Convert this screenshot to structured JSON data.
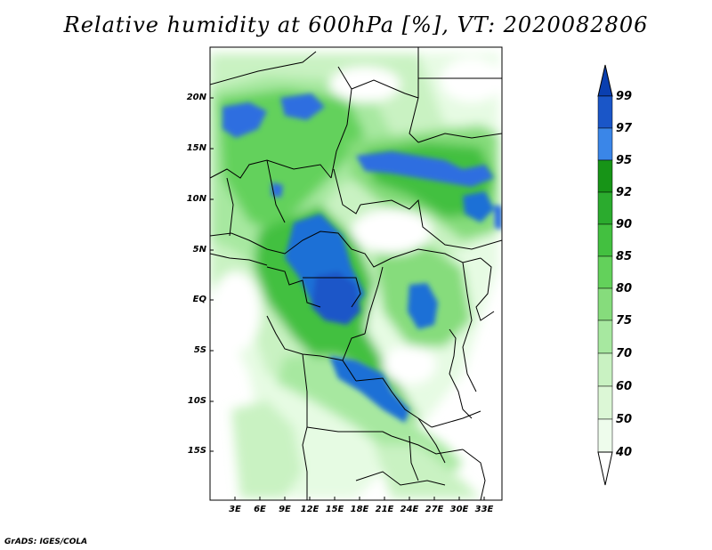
{
  "title": "Relative humidity at 600hPa [%], VT: 2020082806",
  "credit": "GrADS: IGES/COLA",
  "lat_ticks": [
    "20N",
    "15N",
    "10N",
    "5N",
    "EQ",
    "5S",
    "10S",
    "15S"
  ],
  "lon_ticks": [
    "3E",
    "6E",
    "9E",
    "12E",
    "15E",
    "18E",
    "21E",
    "24E",
    "27E",
    "30E",
    "33E"
  ],
  "colorbar": {
    "levels": [
      "40",
      "50",
      "60",
      "70",
      "75",
      "80",
      "85",
      "90",
      "92",
      "95",
      "97",
      "99"
    ],
    "colors": [
      "#ffffff",
      "#e6fbe3",
      "#c9f2c2",
      "#a7e8a0",
      "#86dc7c",
      "#63d15b",
      "#43c040",
      "#2bab2e",
      "#179417",
      "#1f78d8",
      "#2d6ee0",
      "#1a56c8",
      "#0a3fb0"
    ]
  }
}
